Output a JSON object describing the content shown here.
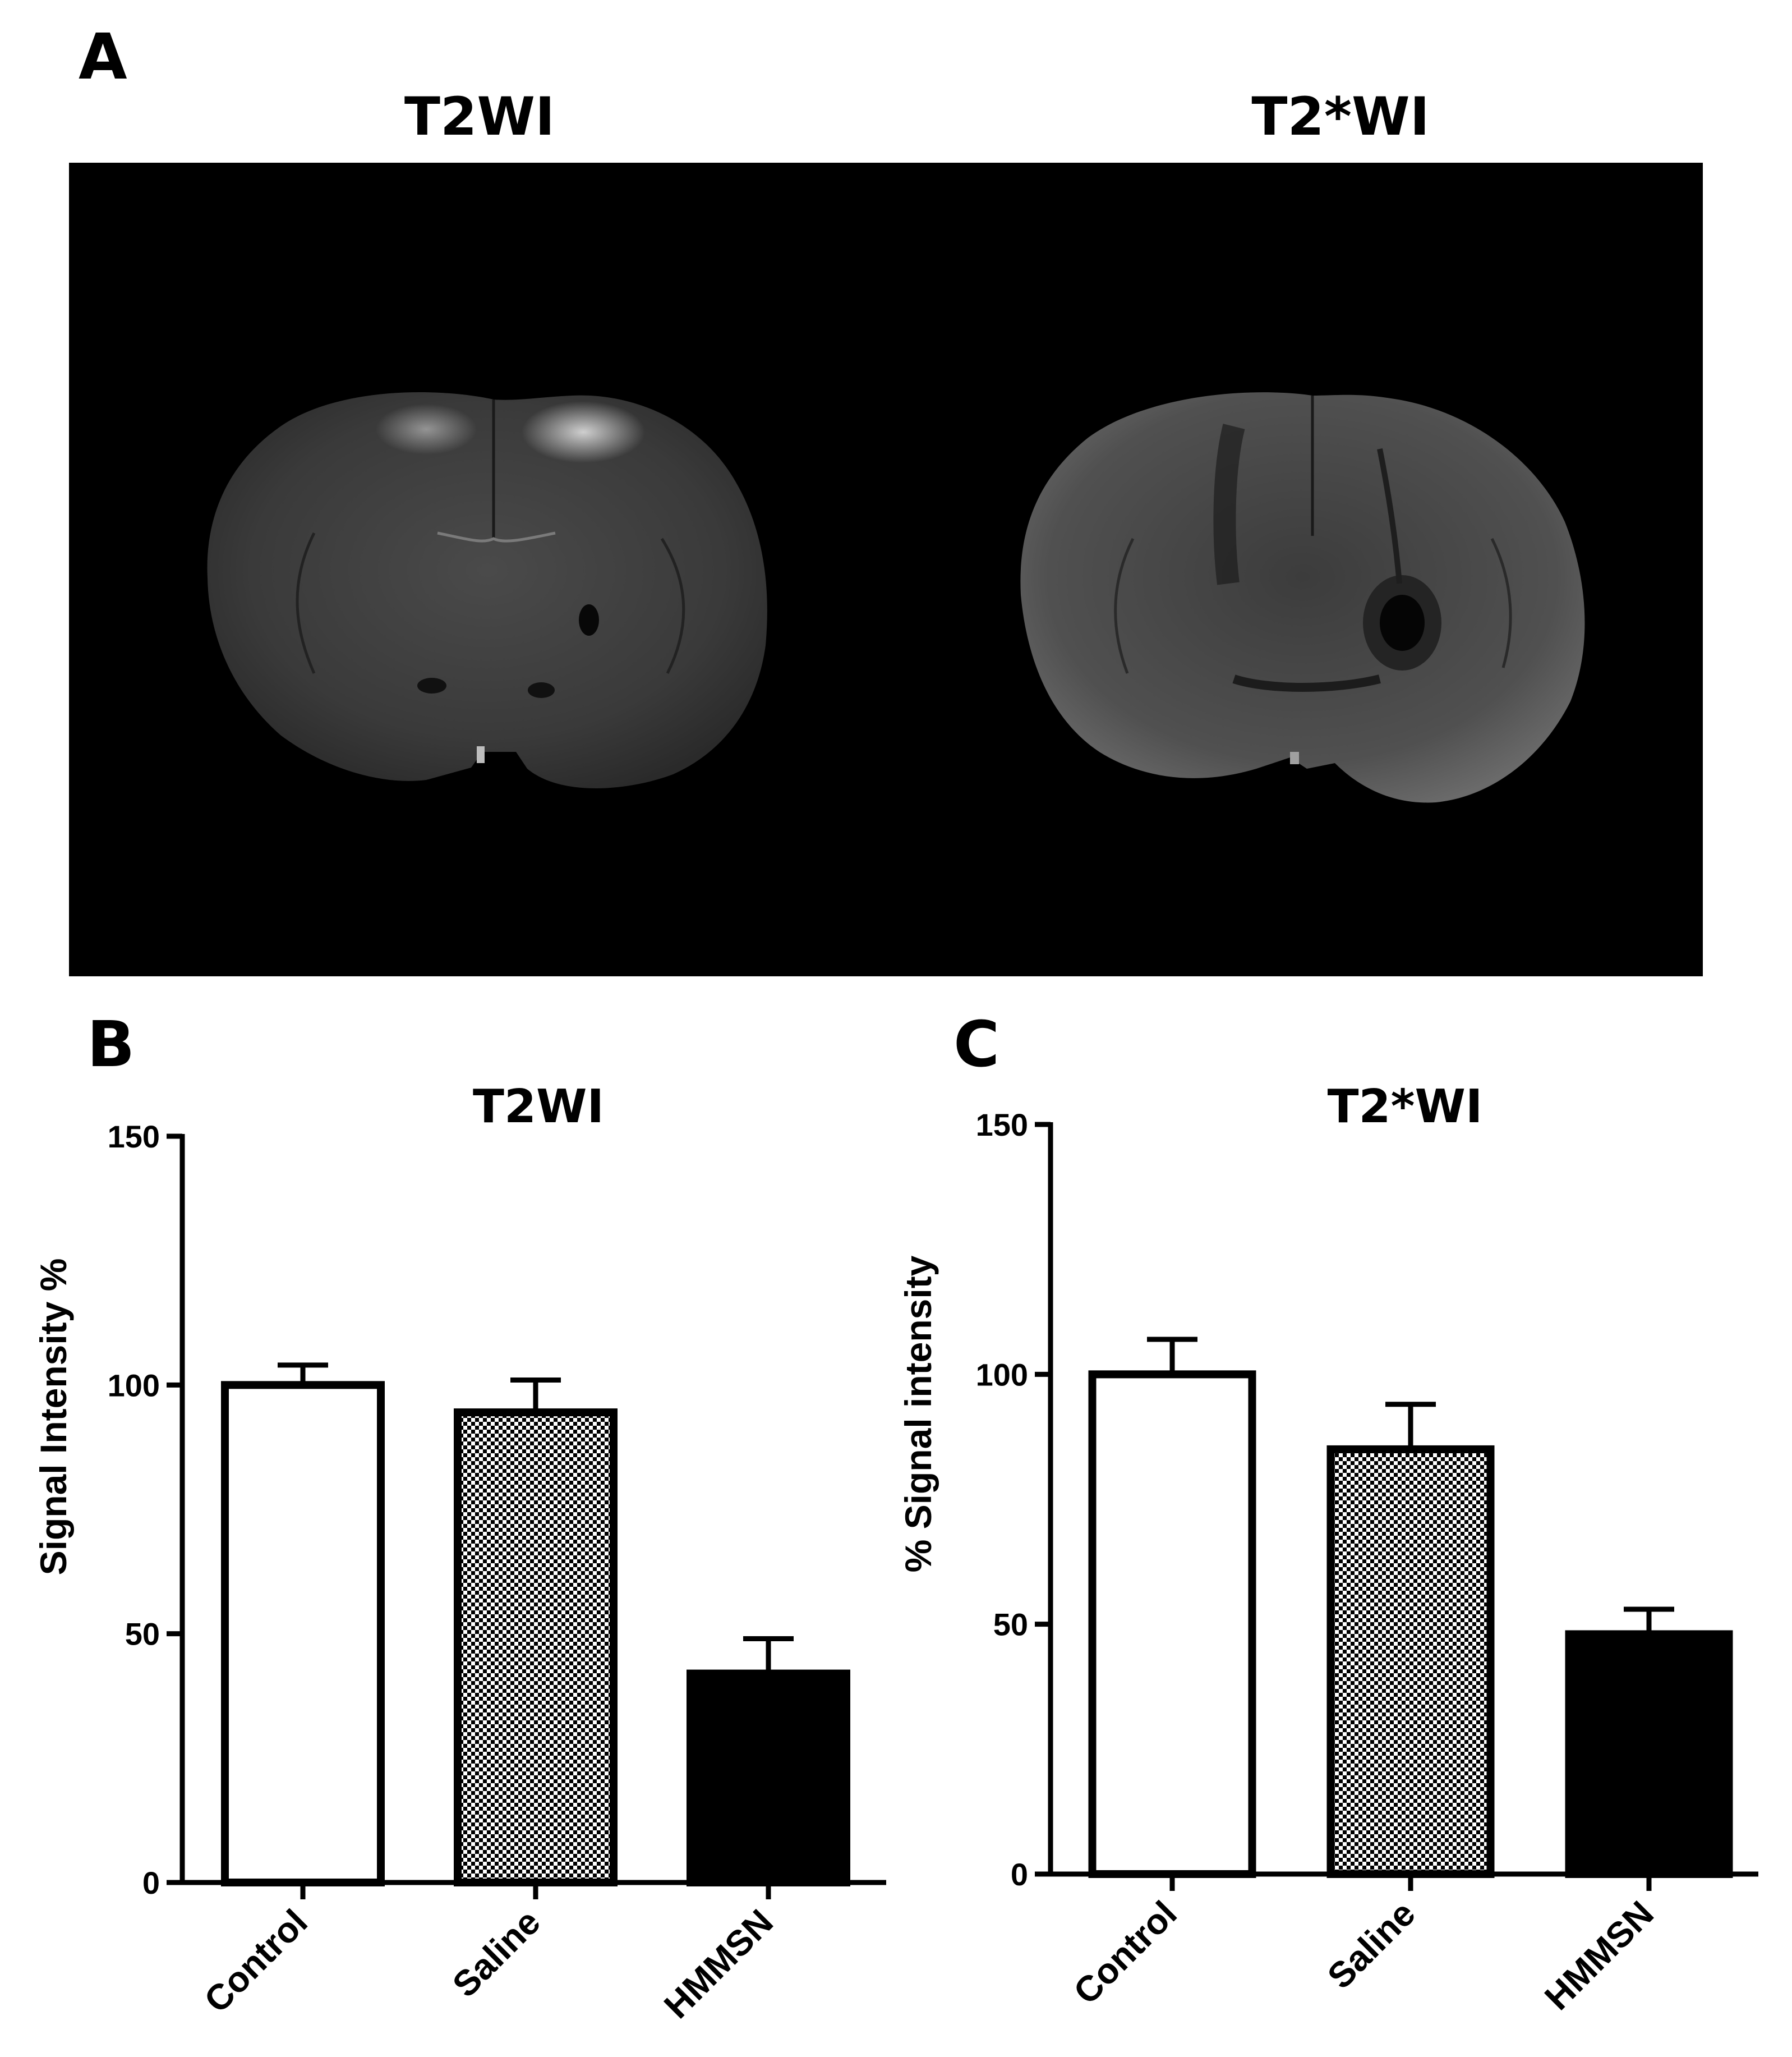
{
  "panel_letters": {
    "a": "A",
    "b": "B",
    "c": "C"
  },
  "image_panel": {
    "left_title": "T2WI",
    "right_title": "T2*WI"
  },
  "colors": {
    "control": "#ffffff",
    "saline_pattern": "checkerboard",
    "hmmsn": "#000000",
    "mri_background": "#000000"
  },
  "chart_data": [
    {
      "type": "bar",
      "title": "T2WI",
      "ylabel": "Signal Intensity %",
      "xlabel": "",
      "categories": [
        "Control",
        "Saline",
        "HMMSN"
      ],
      "values": [
        100,
        94.5,
        42
      ],
      "error": [
        4,
        6.5,
        7
      ],
      "fills": [
        "#ffffff",
        "checkerboard",
        "#000000"
      ],
      "ylim": [
        0,
        150
      ],
      "yticks": [
        0,
        50,
        100,
        150
      ],
      "grid": false
    },
    {
      "type": "bar",
      "title": "T2*WI",
      "ylabel": "% Signal intensity",
      "xlabel": "",
      "categories": [
        "Control",
        "Saline",
        "HMMSN"
      ],
      "values": [
        100,
        85,
        48
      ],
      "error": [
        7,
        9,
        5
      ],
      "fills": [
        "#ffffff",
        "checkerboard",
        "#000000"
      ],
      "ylim": [
        0,
        150
      ],
      "yticks": [
        0,
        50,
        100,
        150
      ],
      "grid": false
    }
  ]
}
